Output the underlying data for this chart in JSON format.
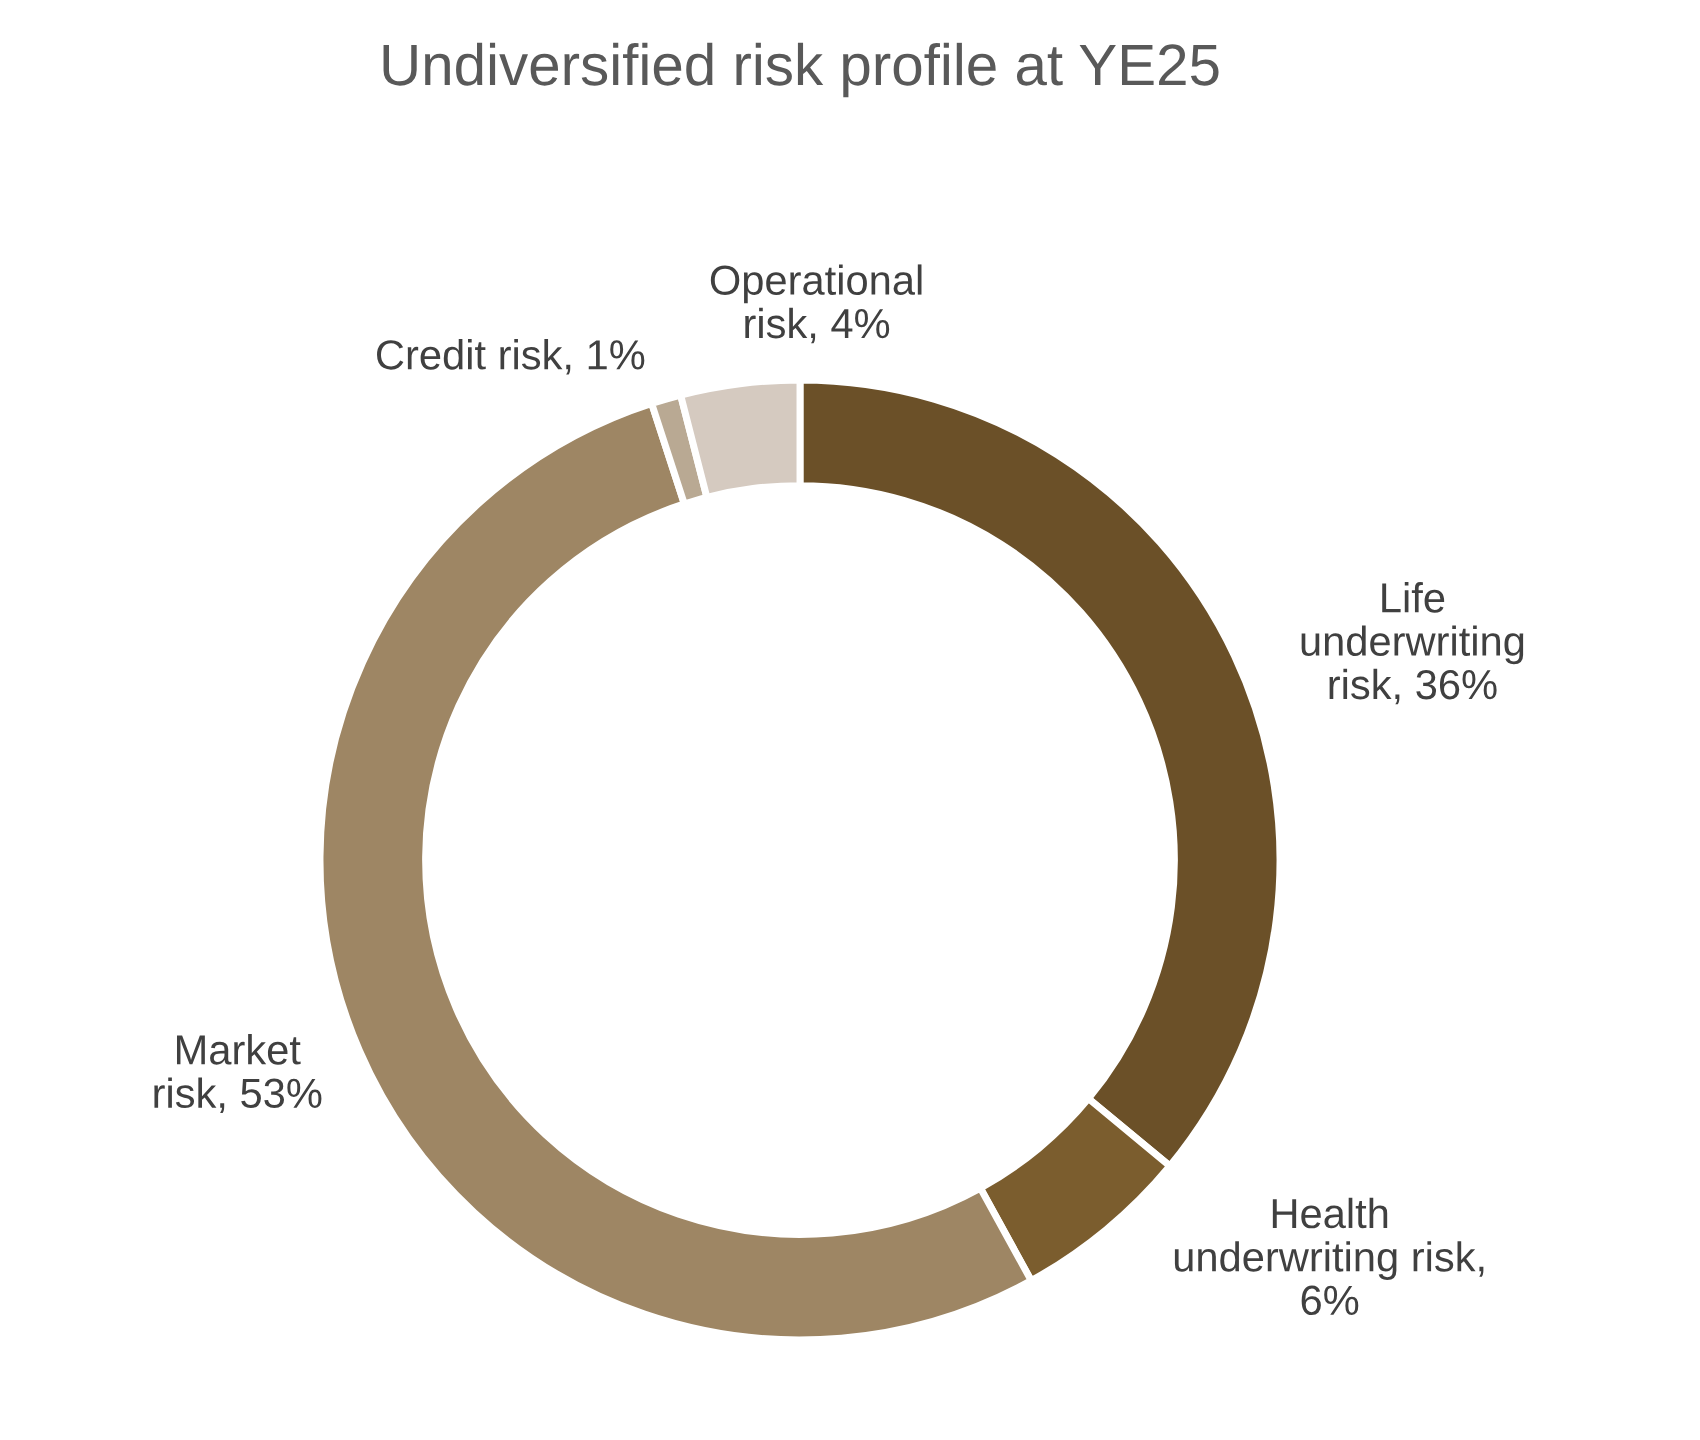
{
  "chart_data": {
    "type": "donut",
    "title": "Undiversified risk profile at YE25",
    "categories": [
      "Life\nunderwriting\nrisk, 36%",
      "Health\nunderwriting risk,\n6%",
      "Market\nrisk, 53%",
      "Credit risk, 1%",
      "Operational\nrisk, 4%"
    ],
    "values": [
      36,
      6,
      53,
      1,
      4
    ],
    "colors": [
      "#6b5028",
      "#7b5d2e",
      "#9e8664",
      "#b9a993",
      "#d5cac0"
    ]
  }
}
